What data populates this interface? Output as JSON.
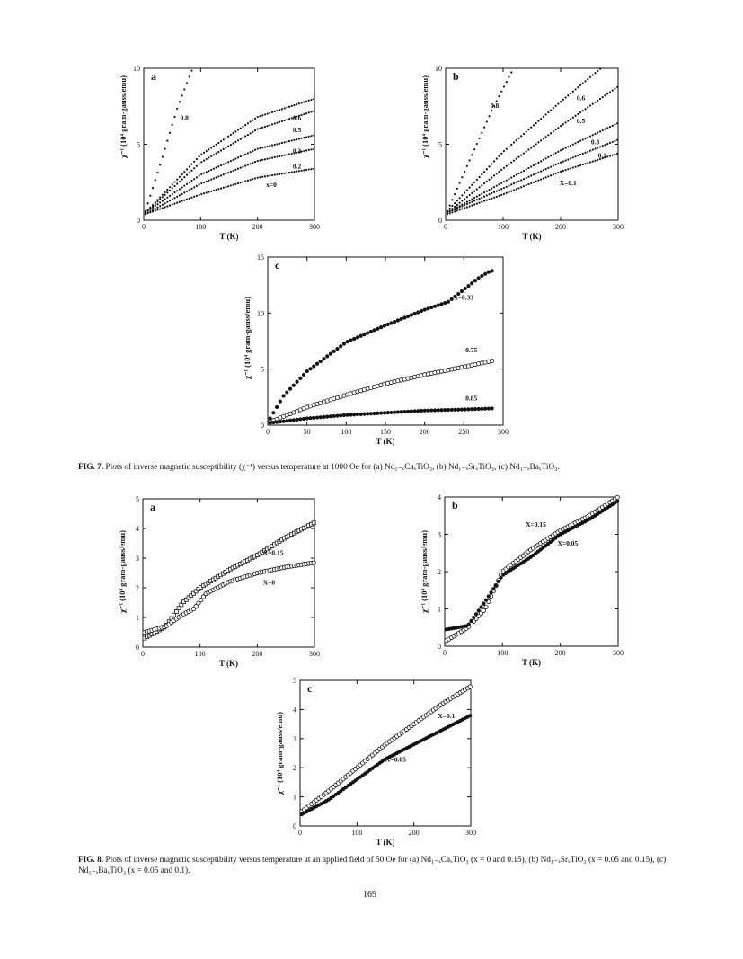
{
  "page_number": "169",
  "captions": {
    "fig7_label": "FIG. 7.",
    "fig7_text": "Plots of inverse magnetic susceptibility (χ⁻¹) versus temperature at 1000 Oe for (a) Nd₁₋ₓCaₓTiO₃, (b) Nd₁₋ₓSrₓTiO₃, (c) Nd₁₋ₓBaₓTiO₃.",
    "fig8_label": "FIG. 8.",
    "fig8_text": "Plots of inverse magnetic susceptibility versus temperature at an applied field of 50 Oe for (a) Nd₁₋ₓCaₓTiO₃ (x = 0 and 0.15), (b) Nd₁₋ₓSrₓTiO₃ (x = 0.05 and 0.15), (c) Nd₁₋ₓBaₓTiO₃ (x = 0.05 and 0.1)."
  },
  "chart_data": [
    {
      "id": "fig7a",
      "type": "scatter",
      "panel": "a",
      "xlabel": "T (K)",
      "ylabel": "χ⁻¹ (10⁴ gram-gauss/emu)",
      "xlim": [
        0,
        300
      ],
      "ylim": [
        0,
        10
      ],
      "xticks": [
        0,
        100,
        200,
        300
      ],
      "yticks": [
        0,
        5,
        10
      ],
      "series": [
        {
          "name": "0.8",
          "marker": "dot",
          "x": [
            3,
            30,
            60,
            86
          ],
          "y": [
            0.6,
            3.8,
            7.5,
            10.0
          ],
          "label_at": [
            64,
            6.6
          ]
        },
        {
          "name": "0.6",
          "marker": "dot",
          "x": [
            3,
            100,
            200,
            300
          ],
          "y": [
            0.5,
            4.3,
            6.8,
            8.0
          ],
          "label_at": [
            262,
            6.6
          ]
        },
        {
          "name": "0.5",
          "marker": "dot",
          "x": [
            3,
            100,
            200,
            300
          ],
          "y": [
            0.5,
            3.8,
            6.0,
            7.2
          ],
          "label_at": [
            262,
            5.8
          ]
        },
        {
          "name": "0.3",
          "marker": "dot",
          "x": [
            3,
            100,
            200,
            300
          ],
          "y": [
            0.5,
            3.0,
            4.7,
            5.6
          ],
          "label_at": [
            262,
            4.4
          ]
        },
        {
          "name": "0.2",
          "marker": "dot",
          "x": [
            3,
            100,
            200,
            300
          ],
          "y": [
            0.4,
            2.4,
            3.9,
            4.7
          ],
          "label_at": [
            262,
            3.4
          ]
        },
        {
          "name": "x=0",
          "marker": "dot",
          "x": [
            3,
            100,
            200,
            300
          ],
          "y": [
            0.4,
            1.7,
            2.8,
            3.4
          ],
          "label_at": [
            215,
            2.2
          ]
        }
      ]
    },
    {
      "id": "fig7b",
      "type": "scatter",
      "panel": "b",
      "xlabel": "T (K)",
      "ylabel": "χ⁻¹ (10⁴ gram-gauss/emu)",
      "xlim": [
        0,
        300
      ],
      "ylim": [
        0,
        10
      ],
      "xticks": [
        0,
        100,
        200,
        300
      ],
      "yticks": [
        0,
        5,
        10
      ],
      "series": [
        {
          "name": "0.8",
          "marker": "dot",
          "x": [
            3,
            40,
            80,
            118
          ],
          "y": [
            0.6,
            3.8,
            7.2,
            10.0
          ],
          "label_at": [
            78,
            7.4
          ]
        },
        {
          "name": "0.6",
          "marker": "dot",
          "x": [
            3,
            100,
            200,
            270
          ],
          "y": [
            0.6,
            4.5,
            7.8,
            10.0
          ],
          "label_at": [
            228,
            7.9
          ]
        },
        {
          "name": "0.5",
          "marker": "dot",
          "x": [
            3,
            100,
            200,
            300
          ],
          "y": [
            0.5,
            3.4,
            6.2,
            8.8
          ],
          "label_at": [
            228,
            6.4
          ]
        },
        {
          "name": "0.3",
          "marker": "dot",
          "x": [
            3,
            100,
            200,
            300
          ],
          "y": [
            0.5,
            2.5,
            4.6,
            6.4
          ],
          "label_at": [
            253,
            5.0
          ]
        },
        {
          "name": "0.2",
          "marker": "dot",
          "x": [
            3,
            100,
            200,
            300
          ],
          "y": [
            0.5,
            2.1,
            3.8,
            5.3
          ],
          "label_at": [
            265,
            4.1
          ]
        },
        {
          "name": "X=0.1",
          "marker": "dot",
          "x": [
            3,
            100,
            200,
            300
          ],
          "y": [
            0.4,
            1.7,
            3.2,
            4.4
          ],
          "label_at": [
            198,
            2.3
          ]
        }
      ]
    },
    {
      "id": "fig7c",
      "type": "scatter",
      "panel": "c",
      "xlabel": "T (K)",
      "ylabel": "χ⁻¹ (10⁴ gram-gauss/emu)",
      "xlim": [
        0,
        300
      ],
      "ylim": [
        0,
        15
      ],
      "xticks": [
        0,
        50,
        100,
        150,
        200,
        250,
        300
      ],
      "yticks": [
        0,
        5,
        10,
        15
      ],
      "series": [
        {
          "name": "x=0.33",
          "marker": "filled",
          "x": [
            3,
            20,
            50,
            100,
            150,
            200,
            230,
            250,
            270,
            285,
            290
          ],
          "y": [
            0.6,
            2.6,
            4.8,
            7.4,
            8.9,
            10.3,
            11.0,
            12.1,
            13.2,
            13.8,
            13.6
          ],
          "label_at": [
            238,
            11.2
          ]
        },
        {
          "name": "0.75",
          "marker": "open",
          "x": [
            3,
            50,
            100,
            150,
            200,
            250,
            290
          ],
          "y": [
            0.3,
            1.6,
            2.7,
            3.7,
            4.5,
            5.2,
            5.8
          ],
          "label_at": [
            252,
            6.5
          ]
        },
        {
          "name": "0.85",
          "marker": "filled",
          "x": [
            3,
            50,
            100,
            150,
            200,
            250,
            290
          ],
          "y": [
            0.2,
            0.6,
            0.9,
            1.1,
            1.3,
            1.4,
            1.5
          ],
          "label_at": [
            252,
            2.2
          ]
        }
      ]
    },
    {
      "id": "fig8a",
      "type": "scatter",
      "panel": "a",
      "xlabel": "T (K)",
      "ylabel": "χ⁻¹ (10⁴ gram-gauss/emu)",
      "xlim": [
        0,
        300
      ],
      "ylim": [
        0,
        5
      ],
      "xticks": [
        0,
        100,
        200,
        300
      ],
      "yticks": [
        0,
        1,
        2,
        3,
        4,
        5
      ],
      "series": [
        {
          "name": "X=0.15",
          "marker": "square",
          "x": [
            3,
            40,
            70,
            100,
            150,
            200,
            250,
            300
          ],
          "y": [
            0.3,
            0.7,
            1.5,
            2.0,
            2.6,
            3.1,
            3.7,
            4.2
          ],
          "label_at": [
            210,
            3.1
          ]
        },
        {
          "name": "X=0",
          "marker": "open",
          "x": [
            3,
            40,
            70,
            90,
            110,
            150,
            200,
            250,
            300
          ],
          "y": [
            0.5,
            0.7,
            1.1,
            1.3,
            1.8,
            2.2,
            2.5,
            2.7,
            2.85
          ],
          "label_at": [
            210,
            2.1
          ]
        }
      ]
    },
    {
      "id": "fig8b",
      "type": "scatter",
      "panel": "b",
      "xlabel": "T (K)",
      "ylabel": "χ⁻¹ (10⁴ gram-gauss/emu)",
      "xlim": [
        0,
        300
      ],
      "ylim": [
        0,
        4
      ],
      "xticks": [
        0,
        100,
        200,
        300
      ],
      "yticks": [
        0,
        1,
        2,
        3,
        4
      ],
      "series": [
        {
          "name": "X=0.15",
          "marker": "open",
          "x": [
            3,
            40,
            70,
            100,
            150,
            200,
            250,
            300
          ],
          "y": [
            0.15,
            0.5,
            1.0,
            2.0,
            2.6,
            3.1,
            3.5,
            4.0
          ],
          "label_at": [
            140,
            3.2
          ]
        },
        {
          "name": "X=0.05",
          "marker": "filled",
          "x": [
            3,
            40,
            70,
            100,
            150,
            200,
            250,
            300
          ],
          "y": [
            0.45,
            0.55,
            1.2,
            1.9,
            2.4,
            3.0,
            3.4,
            3.9
          ],
          "label_at": [
            195,
            2.7
          ]
        }
      ]
    },
    {
      "id": "fig8c",
      "type": "scatter",
      "panel": "c",
      "xlabel": "T (K)",
      "ylabel": "χ⁻¹ (10⁴ gram-gauss/emu)",
      "xlim": [
        0,
        300
      ],
      "ylim": [
        0,
        5
      ],
      "xticks": [
        0,
        100,
        200,
        300
      ],
      "yticks": [
        0,
        1,
        2,
        3,
        4,
        5
      ],
      "series": [
        {
          "name": "X=0.1",
          "marker": "open",
          "x": [
            3,
            50,
            100,
            150,
            200,
            250,
            300
          ],
          "y": [
            0.5,
            1.2,
            2.0,
            2.8,
            3.5,
            4.2,
            4.8
          ],
          "label_at": [
            242,
            3.7
          ]
        },
        {
          "name": "X=0.05",
          "marker": "filled",
          "x": [
            3,
            50,
            100,
            150,
            200,
            250,
            300
          ],
          "y": [
            0.4,
            0.9,
            1.6,
            2.3,
            2.8,
            3.3,
            3.8
          ],
          "label_at": [
            150,
            2.2
          ]
        }
      ]
    }
  ]
}
